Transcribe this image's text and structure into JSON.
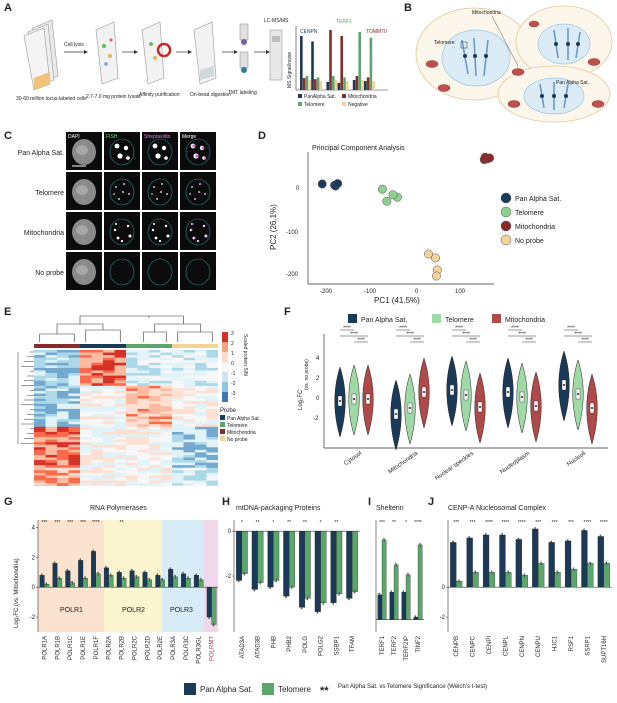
{
  "panels": {
    "A": {
      "letter": "A",
      "steps": [
        "30-60 million locus-labeled cells",
        "Cell lysis",
        "2.7-7.0 mg protein lysate",
        "Affinity purification",
        "On-bead digestion",
        "TMT labeling",
        "LC-MS/MS"
      ],
      "y_label": "MS Signal/noise",
      "protein_labels": [
        "CENPN",
        "TERF1",
        "TOMM70"
      ],
      "legend": [
        "PanAlpha Sat.",
        "Mitochondria",
        "Telomere",
        "Negative"
      ]
    },
    "B": {
      "letter": "B",
      "labels": [
        "Mitochondria",
        "Telomere",
        "Pan Alpha Sat."
      ]
    },
    "C": {
      "letter": "C",
      "columns": [
        "DAPI",
        "FISH",
        "Streptavidin",
        "Merge"
      ],
      "rows": [
        "Pan Alpha Sat.",
        "Telomere",
        "Mitochondria",
        "No probe"
      ]
    },
    "D": {
      "letter": "D",
      "title": "Principal Component Analysis",
      "xlabel": "PC1 (41.5%)",
      "ylabel": "PC2 (26.1%)",
      "xticks": [
        "-200",
        "-100",
        "0",
        "100"
      ],
      "yticks": [
        "0",
        "-100",
        "-200"
      ],
      "legend": [
        "Pan Alpha Sat.",
        "Telomere",
        "Mitochondria",
        "No probe"
      ]
    },
    "E": {
      "letter": "E",
      "scale_title": "Scaled protein S/N",
      "scale_ticks": [
        "3",
        "2",
        "1",
        "0",
        "-1",
        "-2",
        "-3"
      ],
      "probe_title": "Probe",
      "probe_legend": [
        "Pan Alpha Sat.",
        "Telomere",
        "Mitochondria",
        "No probe"
      ],
      "samples": [
        "Mito_2",
        "Mito_1",
        "Mito_3",
        "Mito_4",
        "PanAlpha_1",
        "PanAlpha_2",
        "PanAlpha_3",
        "PanAlpha_4",
        "Telo_1",
        "Telo_2",
        "Telo_3",
        "Telo_4",
        "Negative_2",
        "Negative_1",
        "Negative_3",
        "Negative_4"
      ]
    },
    "F": {
      "letter": "F",
      "legend": [
        "Pan Alpha Sat.",
        "Telomere",
        "Mitochondria"
      ],
      "ylabel": "Log₂FC",
      "ylabel_sub": "(vs. no probe)",
      "yticks": [
        "4",
        "2",
        "0",
        "-2"
      ],
      "categories": [
        "Cytosol",
        "Mitochondria",
        "Nuclear speckles",
        "Nucleoplasm",
        "Nucleoli"
      ],
      "sig": "****"
    },
    "G": {
      "letter": "G",
      "title": "RNA Polymerases",
      "ylabel": "Log₂FC (vs. Mitochondria)",
      "yticks": [
        "4",
        "2",
        "0",
        "-2"
      ],
      "groups": [
        "POLR1",
        "POLR2",
        "POLR3"
      ],
      "proteins": [
        "POLR1A",
        "POLR1B",
        "POLR1C",
        "POLR1E",
        "POLR1F",
        "POLR2A",
        "POLR2B",
        "POLR2C",
        "POLR2D",
        "POLR2E",
        "POLR3A",
        "POLR3C",
        "POLR3GL",
        "POLRMT"
      ],
      "sig": [
        "***",
        "***",
        "***",
        "***",
        "****",
        "**",
        "**"
      ]
    },
    "H": {
      "letter": "H",
      "title": "mtDNA-packaging Proteins",
      "yticks": [
        "0",
        "-2"
      ],
      "proteins": [
        "ATAD3A",
        "ATAD3B",
        "PHB",
        "PHB2",
        "POLG",
        "POLG2",
        "SSBP1",
        "TFAM"
      ],
      "sig": [
        "*",
        "**",
        "*",
        "**",
        "**",
        "*",
        "**"
      ]
    },
    "I": {
      "letter": "I",
      "title": "Shelterin",
      "proteins": [
        "TERF1",
        "TERF2",
        "TERF2IP",
        "TINF2"
      ],
      "sig": [
        "***",
        "**",
        "*",
        "****"
      ]
    },
    "J": {
      "letter": "J",
      "title": "CENP-A Nucleosomal Complex",
      "yticks": [
        "0",
        "-2"
      ],
      "proteins": [
        "CENPB",
        "CENPC",
        "CENPI",
        "CENPL",
        "CENPN",
        "CENPU",
        "HJC1",
        "RSF1",
        "SSRP1",
        "SUPT16H"
      ],
      "sig": [
        "***",
        "***",
        "****",
        "****",
        "****",
        "***",
        "***",
        "***",
        "****",
        "****"
      ]
    },
    "bottom_legend": {
      "pan": "Pan Alpha Sat.",
      "telo": "Telomere",
      "sig_mark": "**",
      "sig_text": "Pan Alpha Sat. vs Telomere Significance (Welch's t-test)"
    }
  },
  "colors": {
    "pan": "#1b3a57",
    "telo": "#5aa66b",
    "mito": "#8b2a2a",
    "neg": "#f2d49a",
    "polr1_bg": "#fbe3cf",
    "polr2_bg": "#fbf5cf",
    "polr3_bg": "#d8ecf7",
    "polrmt_bg": "#f2d7ea",
    "heat_hi": "#d73027",
    "heat_lo": "#4575b4"
  },
  "chart_data": [
    {
      "type": "scatter",
      "title": "Principal Component Analysis",
      "xlabel": "PC1 (41.5%)",
      "ylabel": "PC2 (26.1%)",
      "xlim": [
        -230,
        190
      ],
      "ylim": [
        -215,
        115
      ],
      "series": [
        {
          "name": "Pan Alpha Sat.",
          "x": [
            -198,
            -170,
            -168,
            -163
          ],
          "y": [
            35,
            32,
            30,
            36
          ]
        },
        {
          "name": "Telomere",
          "x": [
            -62,
            -52,
            -28,
            -38
          ],
          "y": [
            22,
            -8,
            2,
            8
          ]
        },
        {
          "name": "Mitochondria",
          "x": [
            168,
            175,
            170,
            180
          ],
          "y": [
            96,
            98,
            102,
            100
          ]
        },
        {
          "name": "No probe",
          "x": [
            42,
            58,
            62,
            60
          ],
          "y": [
            -140,
            -150,
            -180,
            -195
          ]
        }
      ]
    },
    {
      "type": "bar",
      "title": "RNA Polymerases",
      "ylabel": "Log₂FC (vs. Mitochondria)",
      "ylim": [
        -3,
        4.5
      ],
      "categories": [
        "POLR1A",
        "POLR1B",
        "POLR1C",
        "POLR1E",
        "POLR1F",
        "POLR2A",
        "POLR2B",
        "POLR2C",
        "POLR2D",
        "POLR2E",
        "POLR3A",
        "POLR3C",
        "POLR3GL",
        "POLRMT"
      ],
      "series": [
        {
          "name": "Pan Alpha Sat.",
          "values": [
            0.8,
            1.6,
            1.1,
            1.8,
            2.4,
            1.3,
            1.0,
            1.1,
            1.0,
            0.8,
            1.2,
            0.9,
            0.8,
            -2.0
          ]
        },
        {
          "name": "Telomere",
          "values": [
            0.2,
            0.6,
            0.3,
            0.6,
            0.9,
            0.8,
            0.6,
            0.7,
            0.5,
            0.5,
            0.7,
            0.6,
            0.5,
            -2.5
          ]
        }
      ]
    },
    {
      "type": "bar",
      "title": "mtDNA-packaging Proteins",
      "ylim": [
        -4.5,
        0.5
      ],
      "categories": [
        "ATAD3A",
        "ATAD3B",
        "PHB",
        "PHB2",
        "POLG",
        "POLG2",
        "SSBP1",
        "TFAM"
      ],
      "series": [
        {
          "name": "Pan Alpha Sat.",
          "values": [
            -2.2,
            -2.6,
            -2.5,
            -2.9,
            -3.4,
            -3.6,
            -3.2,
            -3.0
          ]
        },
        {
          "name": "Telomere",
          "values": [
            -1.9,
            -2.3,
            -2.2,
            -2.5,
            -3.0,
            -3.2,
            -2.8,
            -2.7
          ]
        }
      ]
    },
    {
      "type": "bar",
      "title": "Shelterin",
      "ylim": [
        -0.5,
        4
      ],
      "categories": [
        "TERF1",
        "TERF2",
        "TERF2IP",
        "TINF2"
      ],
      "series": [
        {
          "name": "Pan Alpha Sat.",
          "values": [
            1.0,
            1.1,
            1.1,
            0.1
          ]
        },
        {
          "name": "Telomere",
          "values": [
            3.2,
            2.2,
            1.8,
            3.0
          ]
        }
      ]
    },
    {
      "type": "bar",
      "title": "CENP-A Nucleosomal Complex",
      "ylim": [
        -3,
        4.5
      ],
      "categories": [
        "CENPB",
        "CENPC",
        "CENPI",
        "CENPL",
        "CENPN",
        "CENPU",
        "HJC1",
        "RSF1",
        "SSRP1",
        "SUPT16H"
      ],
      "series": [
        {
          "name": "Pan Alpha Sat.",
          "values": [
            3.0,
            3.3,
            3.5,
            3.5,
            3.2,
            3.9,
            3.0,
            3.1,
            3.8,
            3.4
          ]
        },
        {
          "name": "Telomere",
          "values": [
            0.4,
            1.0,
            1.0,
            1.0,
            0.8,
            1.6,
            1.0,
            1.2,
            1.6,
            1.6
          ]
        }
      ]
    }
  ]
}
